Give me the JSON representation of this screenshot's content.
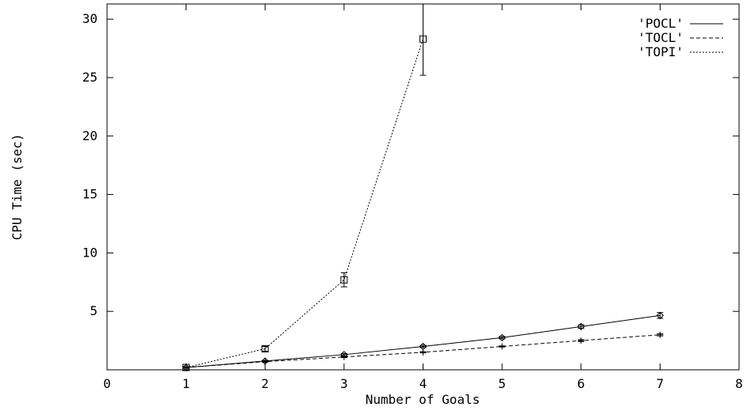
{
  "chart_data": {
    "type": "line",
    "title": "",
    "xlabel": "Number of Goals",
    "ylabel": "CPU Time (sec)",
    "xlim": [
      0,
      8
    ],
    "ylim": [
      0,
      31.3
    ],
    "x_ticks": [
      0,
      1,
      2,
      3,
      4,
      5,
      6,
      7,
      8
    ],
    "y_ticks": [
      5,
      10,
      15,
      20,
      25,
      30
    ],
    "grid": false,
    "legend_position": "top-right",
    "series": [
      {
        "name": "'POCL'",
        "line_style": "solid",
        "marker": "diamond",
        "x": [
          1,
          2,
          3,
          4,
          5,
          6,
          7
        ],
        "y": [
          0.2,
          0.75,
          1.3,
          2.0,
          2.75,
          3.7,
          4.65
        ],
        "error": [
          0.05,
          0.05,
          0.1,
          0.1,
          0.1,
          0.15,
          0.25
        ]
      },
      {
        "name": "'TOCL'",
        "line_style": "dashed",
        "marker": "plus",
        "x": [
          1,
          2,
          3,
          4,
          5,
          6,
          7
        ],
        "y": [
          0.2,
          0.7,
          1.1,
          1.5,
          2.0,
          2.5,
          3.0
        ],
        "error": [
          0.03,
          0.05,
          0.05,
          0.05,
          0.05,
          0.08,
          0.1
        ]
      },
      {
        "name": "'TOPI'",
        "line_style": "dotted",
        "marker": "square",
        "x": [
          1,
          2,
          3,
          4
        ],
        "y": [
          0.2,
          1.8,
          7.7,
          28.3
        ],
        "error": [
          0.05,
          0.2,
          0.6,
          3.1
        ]
      }
    ]
  }
}
